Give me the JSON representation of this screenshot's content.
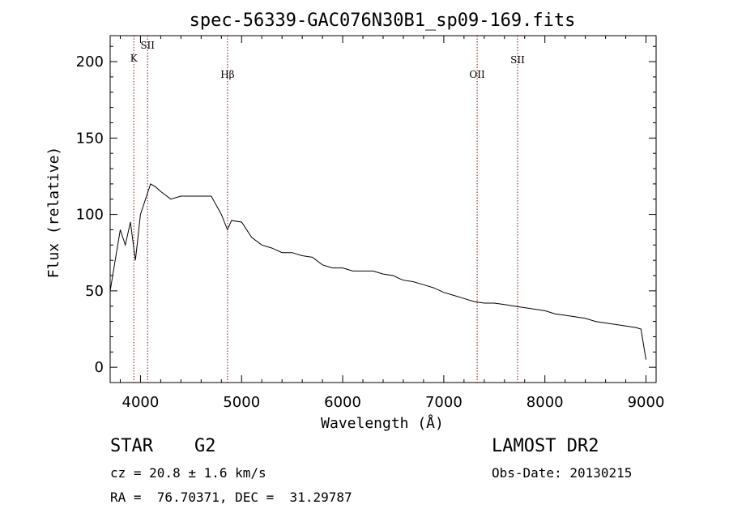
{
  "chart_data": {
    "type": "line",
    "title": "spec-56339-GAC076N30B1_sp09-169.fits",
    "xlabel": "Wavelength (Å)",
    "ylabel": "Flux (relative)",
    "xlim": [
      3700,
      9100
    ],
    "ylim": [
      -10,
      217
    ],
    "xticks": [
      4000,
      5000,
      6000,
      7000,
      8000,
      9000
    ],
    "yticks": [
      0,
      50,
      100,
      150,
      200
    ],
    "grid": false,
    "spectral_lines": [
      {
        "name": "K",
        "x": 3934
      },
      {
        "name": "SII",
        "x": 4070
      },
      {
        "name": "Hβ",
        "x": 4861
      },
      {
        "name": "OII",
        "x": 7330
      },
      {
        "name": "SII",
        "x": 7730
      }
    ],
    "series": [
      {
        "x": [
          3700,
          3750,
          3800,
          3850,
          3900,
          3950,
          4000,
          4050,
          4100,
          4150,
          4200,
          4300,
          4400,
          4500,
          4600,
          4700,
          4800,
          4860,
          4900,
          5000,
          5100,
          5200,
          5300,
          5400,
          5500,
          5600,
          5700,
          5800,
          5900,
          6000,
          6100,
          6200,
          6300,
          6400,
          6500,
          6563,
          6600,
          6700,
          6800,
          6900,
          7000,
          7100,
          7200,
          7300,
          7400,
          7500,
          7600,
          7700,
          7800,
          7900,
          8000,
          8100,
          8200,
          8300,
          8400,
          8500,
          8600,
          8700,
          8800,
          8900,
          8950,
          9000
        ],
        "y": [
          50,
          70,
          90,
          80,
          95,
          70,
          100,
          110,
          120,
          118,
          115,
          110,
          112,
          112,
          112,
          112,
          100,
          90,
          96,
          95,
          85,
          80,
          78,
          75,
          75,
          73,
          72,
          67,
          65,
          65,
          63,
          63,
          63,
          61,
          60,
          58,
          57,
          56,
          54,
          52,
          49,
          47,
          45,
          43,
          42,
          42,
          41,
          40,
          39,
          38,
          37,
          35,
          34,
          33,
          32,
          30,
          29,
          28,
          27,
          26,
          25,
          5
        ]
      }
    ]
  },
  "info": {
    "object_class": "STAR",
    "subclass": "G2",
    "survey": "LAMOST DR2",
    "redshift": "cz = 20.8 ± 1.6 km/s",
    "obs_date": "Obs-Date: 20130215",
    "coords": "RA =  76.70371, DEC =  31.29787"
  }
}
